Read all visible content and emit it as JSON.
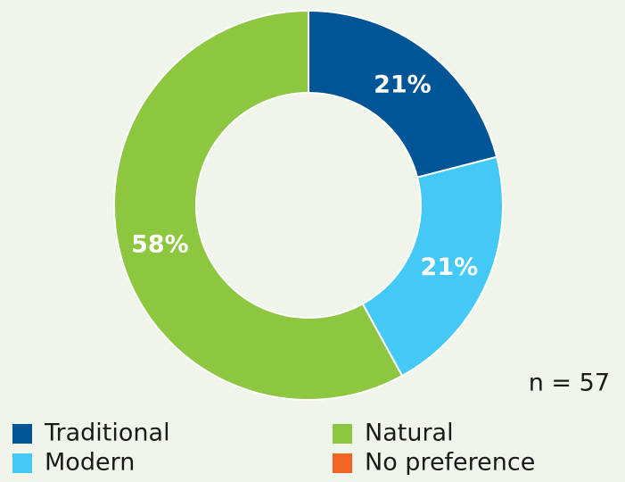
{
  "chart_data": {
    "type": "pie",
    "donut": true,
    "categories": [
      "Traditional",
      "Modern",
      "Natural",
      "No preference"
    ],
    "values": [
      21,
      21,
      58,
      0
    ],
    "value_labels": [
      "21%",
      "21%",
      "58%",
      null
    ],
    "colors": [
      "#005596",
      "#44c8f5",
      "#8dc63f",
      "#f26522"
    ],
    "annotation": "n = 57"
  }
}
